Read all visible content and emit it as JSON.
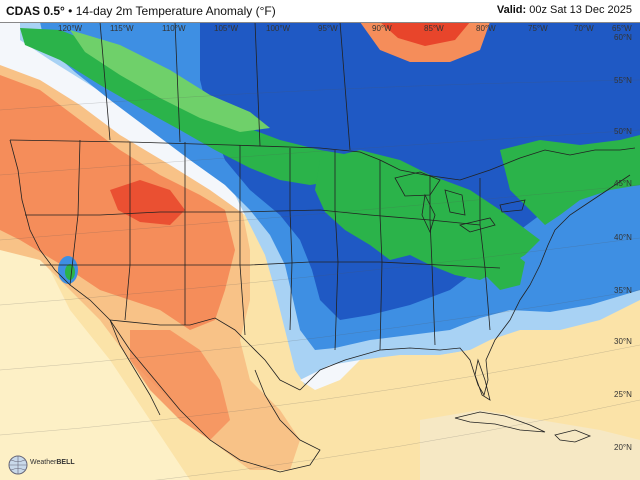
{
  "header": {
    "model": "CDAS 0.5°",
    "separator": "•",
    "product": "14-day 2m Temperature Anomaly (°F)",
    "valid_label": "Valid:",
    "valid_time": "00z Sat 13 Dec 2025"
  },
  "lon_labels": [
    "120°W",
    "115°W",
    "110°W",
    "105°W",
    "100°W",
    "95°W",
    "90°W",
    "85°W",
    "80°W",
    "75°W",
    "70°W",
    "65°W"
  ],
  "lat_labels": [
    "60°N",
    "55°N",
    "50°N",
    "45°N",
    "40°N",
    "35°N",
    "30°N",
    "25°N",
    "20°N"
  ],
  "logo": {
    "part1": "Weather",
    "part2": "BELL"
  },
  "colors": {
    "strong_warm": "#e8452b",
    "warm": "#f58d5a",
    "mild_warm": "#f8c287",
    "slight_warm": "#fde9b0",
    "near_normal": "#f4f7fb",
    "slight_cold": "#a8d2f4",
    "cold": "#3e8fe3",
    "very_cold": "#1f59c4",
    "extreme_cold": "#2bb34a",
    "extreme_cold_light": "#6fd06a"
  }
}
